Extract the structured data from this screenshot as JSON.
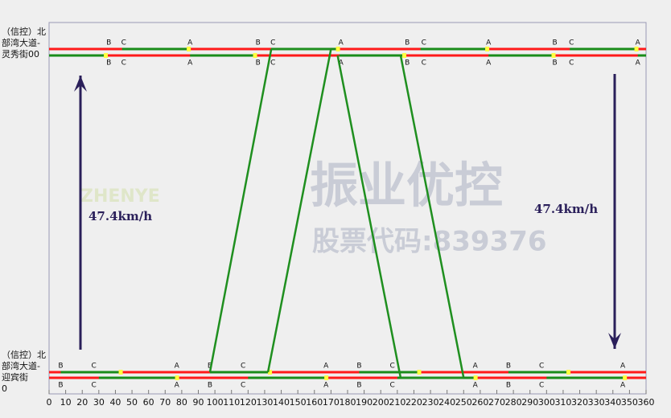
{
  "chart_data": {
    "type": "time-space",
    "xlim": [
      0,
      360
    ],
    "xticks": [
      0,
      10,
      20,
      30,
      40,
      50,
      60,
      70,
      80,
      90,
      100,
      110,
      120,
      130,
      140,
      150,
      160,
      170,
      180,
      190,
      200,
      210,
      220,
      230,
      240,
      250,
      260,
      270,
      280,
      290,
      300,
      310,
      320,
      330,
      340,
      350,
      360
    ],
    "intersections": [
      {
        "label": [
          "（信控）北",
          "部湾大道-",
          "灵秀街00"
        ],
        "phases": [
          {
            "name": "B",
            "t": 36
          },
          {
            "name": "C",
            "t": 45
          },
          {
            "name": "A",
            "t": 85
          },
          {
            "name": "B",
            "t": 126
          },
          {
            "name": "C",
            "t": 135
          },
          {
            "name": "A",
            "t": 176
          },
          {
            "name": "B",
            "t": 216
          },
          {
            "name": "C",
            "t": 226
          },
          {
            "name": "A",
            "t": 265
          },
          {
            "name": "B",
            "t": 305
          },
          {
            "name": "C",
            "t": 315
          },
          {
            "name": "A",
            "t": 355
          }
        ],
        "green_upper": [
          [
            44,
            83
          ],
          [
            134,
            173
          ],
          [
            224,
            263
          ],
          [
            314,
            353
          ]
        ],
        "green_lower": [
          [
            0,
            33
          ],
          [
            85,
            123
          ],
          [
            175,
            213
          ],
          [
            265,
            303
          ],
          [
            355,
            360
          ]
        ]
      },
      {
        "label": [
          "（信控）北",
          "部湾大道-",
          "迎宾街",
          "0"
        ],
        "phases": [
          {
            "name": "B",
            "t": 7
          },
          {
            "name": "C",
            "t": 27
          },
          {
            "name": "A",
            "t": 77
          },
          {
            "name": "B",
            "t": 97
          },
          {
            "name": "C",
            "t": 117
          },
          {
            "name": "A",
            "t": 167
          },
          {
            "name": "B",
            "t": 187
          },
          {
            "name": "C",
            "t": 207
          },
          {
            "name": "A",
            "t": 257
          },
          {
            "name": "B",
            "t": 277
          },
          {
            "name": "C",
            "t": 297
          },
          {
            "name": "A",
            "t": 346
          }
        ],
        "green_upper": [
          [
            7,
            42
          ],
          [
            97,
            132
          ],
          [
            187,
            222
          ],
          [
            277,
            312
          ]
        ],
        "green_lower": [
          [
            30,
            76
          ],
          [
            120,
            166
          ],
          [
            210,
            256
          ],
          [
            300,
            346
          ]
        ]
      }
    ],
    "bands": [
      {
        "dir": "up",
        "start": [
          97,
          132
        ],
        "end": [
          134,
          170
        ]
      },
      {
        "dir": "down",
        "start": [
          174,
          212
        ],
        "end": [
          212,
          250
        ]
      }
    ],
    "speed_up": "47.4km/h",
    "speed_down": "47.4km/h",
    "watermark": [
      "ZHENYE",
      "振业优控",
      "股票代码:839376"
    ],
    "colors": {
      "red": "#ff1a1a",
      "green": "#1a8c1a",
      "yellow": "#ffff40",
      "band": "#1f8f1f",
      "arrow": "#2a1f5a"
    }
  }
}
